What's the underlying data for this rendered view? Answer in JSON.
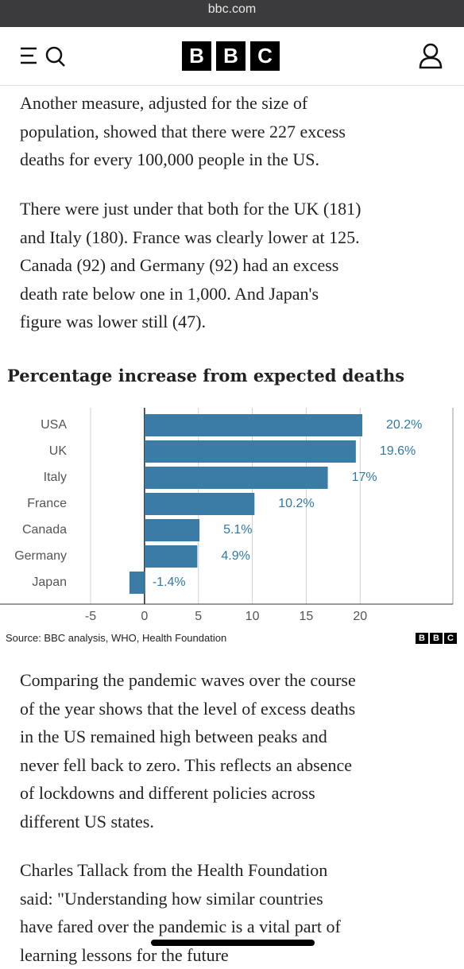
{
  "browser": {
    "url": "bbc.com"
  },
  "header": {
    "logo": [
      "B",
      "B",
      "C"
    ]
  },
  "article": {
    "paragraphs": [
      [
        "Another measure, adjusted for the size of",
        "population, showed that there were 227 excess",
        "deaths for every 100,000 people in the US."
      ],
      [
        "There were just under that both for the UK (181)",
        "and Italy (180). France was clearly lower at 125.",
        "Canada (92) and Germany (92) had an excess",
        "death rate below one in 1,000. And Japan's",
        "figure was lower still (47)."
      ]
    ],
    "paragraphs_after": [
      [
        "Comparing the pandemic waves over the course",
        "of the year shows that the level of excess deaths",
        "in the US remained high between peaks and",
        "never fell back to zero. This reflects an absence",
        "of lockdowns and different policies across",
        "different US states."
      ],
      [
        "Charles Tallack from the Health Foundation",
        "said: \"Understanding how similar countries",
        "have fared over the pandemic is a vital part of",
        "learning lessons for the future"
      ]
    ]
  },
  "chart_data": {
    "type": "bar",
    "orientation": "horizontal",
    "title": "Percentage increase from expected deaths",
    "categories": [
      "USA",
      "UK",
      "Italy",
      "France",
      "Canada",
      "Germany",
      "Japan"
    ],
    "values": [
      20.2,
      19.6,
      17,
      10.2,
      5.1,
      4.9,
      -1.4
    ],
    "value_labels": [
      "20.2%",
      "19.6%",
      "17%",
      "10.2%",
      "5.1%",
      "4.9%",
      "-1.4%"
    ],
    "color": "#3a7ca5",
    "label_color": "#2f7aa3",
    "xlim": [
      -6.4,
      28.6
    ],
    "xticks": [
      -5,
      0,
      5,
      10,
      15,
      20
    ],
    "grid": true,
    "source": "Source: BBC analysis, WHO, Health Foundation",
    "source_logo": [
      "B",
      "B",
      "C"
    ]
  }
}
